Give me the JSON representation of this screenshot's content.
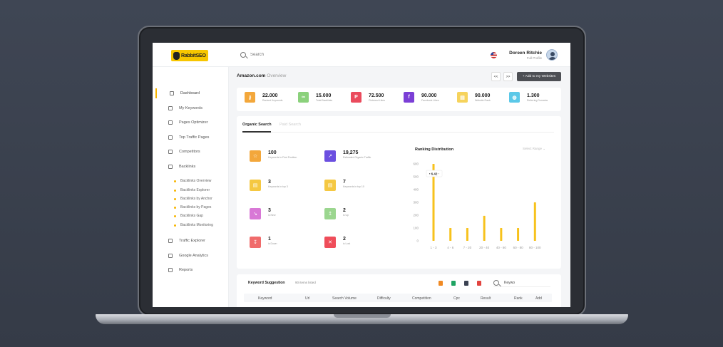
{
  "brand": {
    "logo_text": "RabbitSEO"
  },
  "search": {
    "placeholder": "Search"
  },
  "user": {
    "name": "Doreen Ritchie",
    "role": "Full Profile"
  },
  "header": {
    "title": "Amazon.com",
    "subtitle": "Overview",
    "btn_prev": "<<",
    "btn_next": ">>",
    "add_label": "+ Add to my Websites"
  },
  "sidebar": {
    "items": [
      {
        "label": "Dashboard",
        "icon": "dashboard-icon"
      },
      {
        "label": "My Keywords",
        "icon": "key-icon"
      },
      {
        "label": "Pages Optimizer",
        "icon": "page-icon"
      },
      {
        "label": "Top Traffic Pages",
        "icon": "network-icon"
      },
      {
        "label": "Competitors",
        "icon": "trophy-icon"
      },
      {
        "label": "Backlinks",
        "icon": "link-icon"
      }
    ],
    "subitems": [
      "Backlinks Overview",
      "Backlinks Explorer",
      "Backlinks by Anchor",
      "Backlinks by Pages",
      "Backlinks Gap",
      "Backlinks Monitoring"
    ],
    "items2": [
      {
        "label": "Traffic Explorer",
        "icon": "traffic-icon"
      },
      {
        "label": "Google Analytics",
        "icon": "analytics-icon"
      },
      {
        "label": "Reports",
        "icon": "report-icon"
      }
    ]
  },
  "stats": [
    {
      "value": "22.000",
      "label": "Ranked Keywords",
      "color": "#f3a73b",
      "icon": "key-icon"
    },
    {
      "value": "15.000",
      "label": "Total Backlinks",
      "color": "#8bd17c",
      "icon": "link-icon"
    },
    {
      "value": "72.500",
      "label": "Pinterest Likes",
      "color": "#ea4b5d",
      "icon": "pinterest-icon"
    },
    {
      "value": "90.000",
      "label": "Facebook Likes",
      "color": "#7b3fd6",
      "icon": "facebook-icon"
    },
    {
      "value": "90.000",
      "label": "Website Rank",
      "color": "#f6d35c",
      "icon": "rank-icon"
    },
    {
      "value": "1.300",
      "label": "Referring Domains",
      "color": "#5bc8e8",
      "icon": "globe-icon"
    }
  ],
  "tabs": {
    "organic": "Organic Search",
    "paid": "Paid Search"
  },
  "metrics": [
    {
      "value": "100",
      "label": "Keywords in First Position",
      "color": "#f3a73b",
      "glyph": "☆"
    },
    {
      "value": "19,275",
      "label": "Estimated Organic Traffic",
      "color": "#6b4fe0",
      "glyph": "↗"
    },
    {
      "value": "3",
      "label": "Keywords in top 3",
      "color": "#f5c842",
      "glyph": "▤"
    },
    {
      "value": "7",
      "label": "Keywords in top 10",
      "color": "#f5c842",
      "glyph": "▤"
    },
    {
      "value": "3",
      "label": "is New",
      "color": "#d878d6",
      "glyph": "↘"
    },
    {
      "value": "2",
      "label": "is Up",
      "color": "#9bd68f",
      "glyph": "↥"
    },
    {
      "value": "1",
      "label": "is Down",
      "color": "#f06b6b",
      "glyph": "↧"
    },
    {
      "value": "2",
      "label": "is Lost",
      "color": "#ef4d5a",
      "glyph": "✕"
    }
  ],
  "chart": {
    "select": "Select Range"
  },
  "chart_data": {
    "type": "bar",
    "title": "Ranking Distribution",
    "categories": [
      "1 - 3",
      "4 - 6",
      "7 - 20",
      "20 - 40",
      "40 - 60",
      "60 - 80",
      "80 - 100"
    ],
    "values": [
      600,
      100,
      100,
      195,
      100,
      100,
      300
    ],
    "ylim": [
      0,
      600
    ],
    "yticks": [
      0,
      100,
      200,
      300,
      400,
      500,
      600
    ],
    "tooltip": "6.42",
    "color": "#f7c21c"
  },
  "keywords": {
    "title": "Keyword Suggestion",
    "count": "90 items listed",
    "search_value": "Keywo",
    "columns": [
      "Keyword",
      "Url",
      "Search Volume",
      "Difficulty",
      "Competition",
      "Cpc",
      "Result",
      "Rank",
      "Add"
    ]
  }
}
